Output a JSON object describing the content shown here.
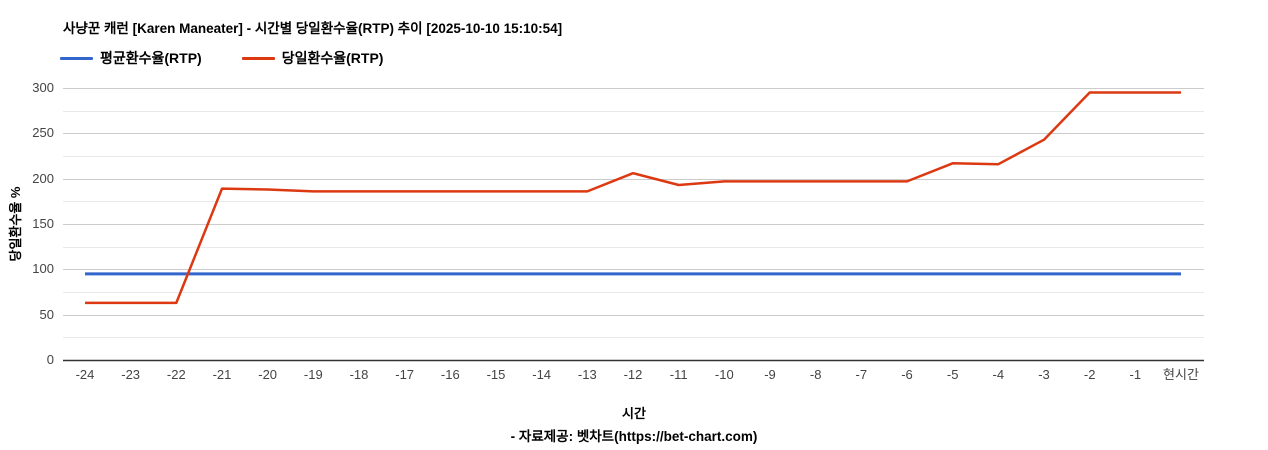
{
  "header": {
    "title": "사냥꾼 캐런 [Karen Maneater] - 시간별 당일환수율(RTP) 추이 [2025-10-10 15:10:54]"
  },
  "legend": {
    "items": [
      {
        "label": "평균환수율(RTP)",
        "color": "#3366cc"
      },
      {
        "label": "당일환수율(RTP)",
        "color": "#dc3912"
      }
    ]
  },
  "axes": {
    "x_title": "시간",
    "y_title": "당일환수율 %"
  },
  "footer": {
    "credit": "- 자료제공: 벳차트(https://bet-chart.com)"
  },
  "colors": {
    "major_grid": "#cccccc",
    "minor_grid": "#e9e9e9",
    "baseline": "#333333",
    "avg_line": "#3366cc",
    "daily_line": "#dc3912"
  },
  "chart_data": {
    "type": "line",
    "title": "사냥꾼 캐런 [Karen Maneater] - 시간별 당일환수율(RTP) 추이 [2025-10-10 15:10:54]",
    "xlabel": "시간",
    "ylabel": "당일환수율 %",
    "ylim": [
      0,
      300
    ],
    "y_ticks": [
      0,
      50,
      100,
      150,
      200,
      250,
      300
    ],
    "minor_tick_step": 25,
    "grid": "horizontal-only",
    "legend_position": "top-left",
    "categories": [
      "-24",
      "-23",
      "-22",
      "-21",
      "-20",
      "-19",
      "-18",
      "-17",
      "-16",
      "-15",
      "-14",
      "-13",
      "-12",
      "-11",
      "-10",
      "-9",
      "-8",
      "-7",
      "-6",
      "-5",
      "-4",
      "-3",
      "-2",
      "-1",
      "현시간"
    ],
    "series": [
      {
        "name": "평균환수율(RTP)",
        "color": "#3366cc",
        "values": [
          95,
          95,
          95,
          95,
          95,
          95,
          95,
          95,
          95,
          95,
          95,
          95,
          95,
          95,
          95,
          95,
          95,
          95,
          95,
          95,
          95,
          95,
          95,
          95,
          95
        ]
      },
      {
        "name": "당일환수율(RTP)",
        "color": "#dc3912",
        "values": [
          63,
          63,
          63,
          189,
          188,
          186,
          186,
          186,
          186,
          186,
          186,
          186,
          206,
          193,
          197,
          197,
          197,
          197,
          197,
          217,
          216,
          243,
          295,
          295,
          295
        ]
      }
    ]
  }
}
